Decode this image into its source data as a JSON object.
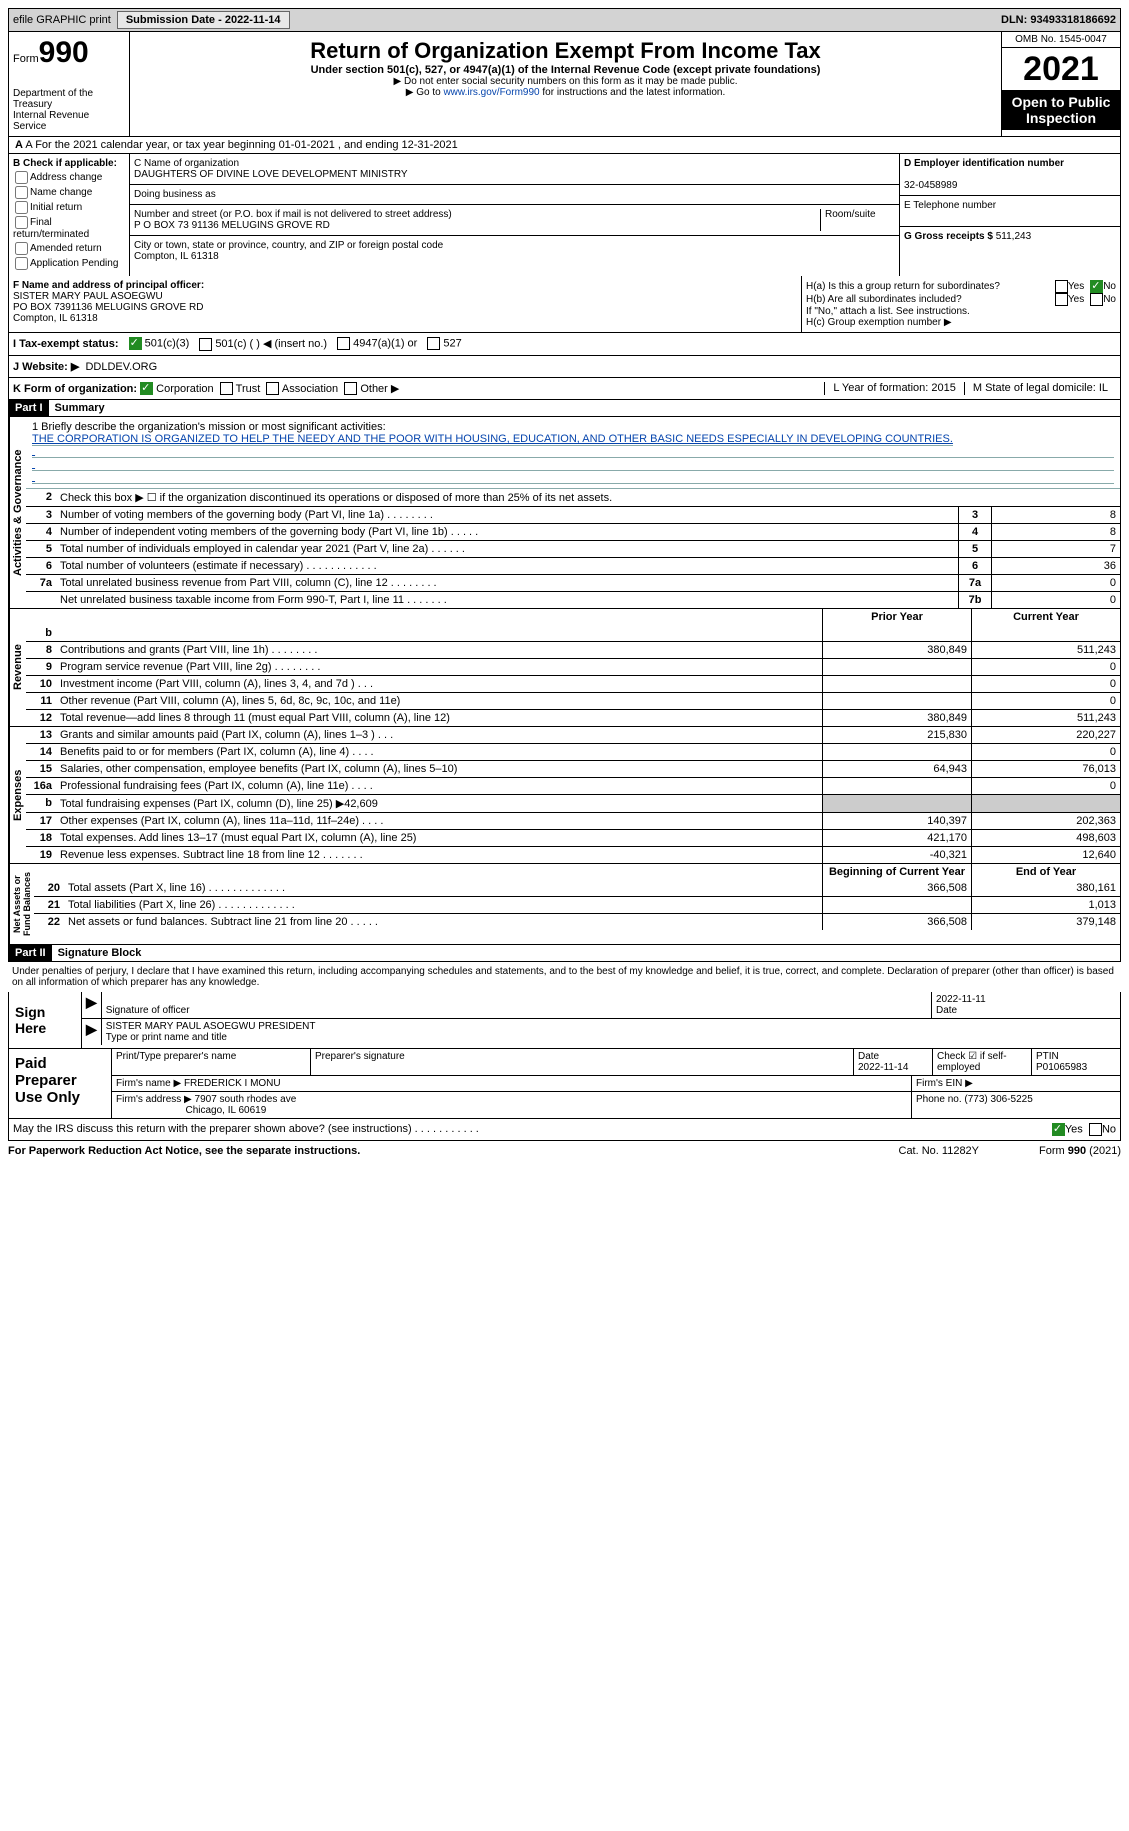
{
  "topbar": {
    "efile": "efile GRAPHIC print",
    "submission_label": "Submission Date - 2022-11-14",
    "dln": "DLN: 93493318186692"
  },
  "header": {
    "form_prefix": "Form",
    "form_num": "990",
    "dept": "Department of the Treasury\nInternal Revenue Service",
    "title": "Return of Organization Exempt From Income Tax",
    "subtitle": "Under section 501(c), 527, or 4947(a)(1) of the Internal Revenue Code (except private foundations)",
    "instr1": "▶ Do not enter social security numbers on this form as it may be made public.",
    "instr2_pre": "▶ Go to ",
    "instr2_link": "www.irs.gov/Form990",
    "instr2_post": " for instructions and the latest information.",
    "omb": "OMB No. 1545-0047",
    "year": "2021",
    "open": "Open to Public Inspection"
  },
  "rowA": {
    "text": "A For the 2021 calendar year, or tax year beginning 01-01-2021     , and ending 12-31-2021"
  },
  "colB": {
    "label": "B Check if applicable:",
    "items": [
      "Address change",
      "Name change",
      "Initial return",
      "Final return/terminated",
      "Amended return",
      "Application Pending"
    ]
  },
  "colC": {
    "name_label": "C Name of organization",
    "name": "DAUGHTERS OF DIVINE LOVE DEVELOPMENT MINISTRY",
    "dba_label": "Doing business as",
    "street_label": "Number and street (or P.O. box if mail is not delivered to street address)",
    "room_label": "Room/suite",
    "street": "P O BOX 73 91136 MELUGINS GROVE RD",
    "city_label": "City or town, state or province, country, and ZIP or foreign postal code",
    "city": "Compton, IL  61318"
  },
  "colD": {
    "label": "D Employer identification number",
    "value": "32-0458989"
  },
  "colE": {
    "label": "E Telephone number",
    "value": ""
  },
  "colG": {
    "label": "G Gross receipts $",
    "value": "511,243"
  },
  "colF": {
    "label": "F Name and address of principal officer:",
    "name": "SISTER MARY PAUL ASOEGWU",
    "addr1": "PO BOX 7391136 MELUGINS GROVE RD",
    "addr2": "Compton, IL  61318"
  },
  "colH": {
    "a_label": "H(a)  Is this a group return for subordinates?",
    "a_no": "No",
    "b_label": "H(b)  Are all subordinates included?",
    "b_note": "If \"No,\" attach a list. See instructions.",
    "c_label": "H(c)  Group exemption number ▶"
  },
  "status": {
    "label": "I   Tax-exempt status:",
    "opt1": "501(c)(3)",
    "opt2": "501(c) (  ) ◀ (insert no.)",
    "opt3": "4947(a)(1) or",
    "opt4": "527"
  },
  "website": {
    "label": "J   Website: ▶",
    "value": "DDLDEV.ORG"
  },
  "rowK": {
    "label": "K Form of organization:",
    "opts": [
      "Corporation",
      "Trust",
      "Association",
      "Other ▶"
    ],
    "l_label": "L Year of formation: 2015",
    "m_label": "M State of legal domicile: IL"
  },
  "part1": {
    "num": "Part I",
    "title": "Summary"
  },
  "mission": {
    "label": "1   Briefly describe the organization's mission or most significant activities:",
    "text": "THE CORPORATION IS ORGANIZED TO HELP THE NEEDY AND THE POOR WITH HOUSING, EDUCATION, AND OTHER BASIC NEEDS ESPECIALLY IN DEVELOPING COUNTRIES."
  },
  "govLines": [
    {
      "n": "2",
      "d": "Check this box ▶ ☐ if the organization discontinued its operations or disposed of more than 25% of its net assets."
    },
    {
      "n": "3",
      "d": "Number of voting members of the governing body (Part VI, line 1a)   .    .    .    .    .    .    .    .",
      "b": "3",
      "v": "8"
    },
    {
      "n": "4",
      "d": "Number of independent voting members of the governing body (Part VI, line 1b)    .    .    .    .    .",
      "b": "4",
      "v": "8"
    },
    {
      "n": "5",
      "d": "Total number of individuals employed in calendar year 2021 (Part V, line 2a)    .    .    .    .    .    .",
      "b": "5",
      "v": "7"
    },
    {
      "n": "6",
      "d": "Total number of volunteers (estimate if necessary)    .    .    .    .    .    .    .    .    .    .    .    .",
      "b": "6",
      "v": "36"
    },
    {
      "n": "7a",
      "d": "Total unrelated business revenue from Part VIII, column (C), line 12    .    .    .    .    .    .    .    .",
      "b": "7a",
      "v": "0"
    },
    {
      "n": "",
      "d": "Net unrelated business taxable income from Form 990-T, Part I, line 11    .    .    .    .    .    .    .",
      "b": "7b",
      "v": "0"
    }
  ],
  "colHeaders": {
    "prior": "Prior Year",
    "current": "Current Year"
  },
  "revLines": [
    {
      "n": "b",
      "d": "",
      "p": "",
      "c": ""
    },
    {
      "n": "8",
      "d": "Contributions and grants (Part VIII, line 1h)    .    .    .    .    .    .    .    .",
      "p": "380,849",
      "c": "511,243"
    },
    {
      "n": "9",
      "d": "Program service revenue (Part VIII, line 2g)    .    .    .    .    .    .    .    .",
      "p": "",
      "c": "0"
    },
    {
      "n": "10",
      "d": "Investment income (Part VIII, column (A), lines 3, 4, and 7d )    .    .    .",
      "p": "",
      "c": "0"
    },
    {
      "n": "11",
      "d": "Other revenue (Part VIII, column (A), lines 5, 6d, 8c, 9c, 10c, and 11e)",
      "p": "",
      "c": "0"
    },
    {
      "n": "12",
      "d": "Total revenue—add lines 8 through 11 (must equal Part VIII, column (A), line 12)",
      "p": "380,849",
      "c": "511,243"
    }
  ],
  "expLines": [
    {
      "n": "13",
      "d": "Grants and similar amounts paid (Part IX, column (A), lines 1–3 )    .    .    .",
      "p": "215,830",
      "c": "220,227"
    },
    {
      "n": "14",
      "d": "Benefits paid to or for members (Part IX, column (A), line 4)    .    .    .    .",
      "p": "",
      "c": "0"
    },
    {
      "n": "15",
      "d": "Salaries, other compensation, employee benefits (Part IX, column (A), lines 5–10)",
      "p": "64,943",
      "c": "76,013"
    },
    {
      "n": "16a",
      "d": "Professional fundraising fees (Part IX, column (A), line 11e)    .    .    .    .",
      "p": "",
      "c": "0"
    },
    {
      "n": "b",
      "d": "Total fundraising expenses (Part IX, column (D), line 25) ▶42,609",
      "p": "shaded",
      "c": "shaded"
    },
    {
      "n": "17",
      "d": "Other expenses (Part IX, column (A), lines 11a–11d, 11f–24e)    .    .    .    .",
      "p": "140,397",
      "c": "202,363"
    },
    {
      "n": "18",
      "d": "Total expenses. Add lines 13–17 (must equal Part IX, column (A), line 25)",
      "p": "421,170",
      "c": "498,603"
    },
    {
      "n": "19",
      "d": "Revenue less expenses. Subtract line 18 from line 12    .    .    .    .    .    .    .",
      "p": "-40,321",
      "c": "12,640"
    }
  ],
  "netHeaders": {
    "prior": "Beginning of Current Year",
    "current": "End of Year"
  },
  "netLines": [
    {
      "n": "20",
      "d": "Total assets (Part X, line 16)    .    .    .    .    .    .    .    .    .    .    .    .    .",
      "p": "366,508",
      "c": "380,161"
    },
    {
      "n": "21",
      "d": "Total liabilities (Part X, line 26)    .    .    .    .    .    .    .    .    .    .    .    .    .",
      "p": "",
      "c": "1,013"
    },
    {
      "n": "22",
      "d": "Net assets or fund balances. Subtract line 21 from line 20    .    .    .    .    .",
      "p": "366,508",
      "c": "379,148"
    }
  ],
  "part2": {
    "num": "Part II",
    "title": "Signature Block"
  },
  "sigDecl": "Under penalties of perjury, I declare that I have examined this return, including accompanying schedules and statements, and to the best of my knowledge and belief, it is true, correct, and complete. Declaration of preparer (other than officer) is based on all information of which preparer has any knowledge.",
  "sign": {
    "label": "Sign Here",
    "sig_officer": "Signature of officer",
    "date": "2022-11-11",
    "date_label": "Date",
    "typed": "SISTER MARY PAUL ASOEGWU  PRESIDENT",
    "typed_label": "Type or print name and title"
  },
  "paid": {
    "label": "Paid Preparer Use Only",
    "prep_name_label": "Print/Type preparer's name",
    "prep_sig_label": "Preparer's signature",
    "date_label": "Date",
    "date": "2022-11-14",
    "check_label": "Check ☑ if self-employed",
    "ptin_label": "PTIN",
    "ptin": "P01065983",
    "firm_name_label": "Firm's name    ▶",
    "firm_name": "FREDERICK I MONU",
    "firm_ein_label": "Firm's EIN ▶",
    "firm_addr_label": "Firm's address ▶",
    "firm_addr1": "7907 south rhodes ave",
    "firm_addr2": "Chicago, IL  60619",
    "phone_label": "Phone no.",
    "phone": "(773) 306-5225"
  },
  "discuss": {
    "label": "May the IRS discuss this return with the preparer shown above? (see instructions)    .    .    .    .    .    .    .    .    .    .    .",
    "yes": "Yes",
    "no": "No"
  },
  "footer": {
    "notice": "For Paperwork Reduction Act Notice, see the separate instructions.",
    "cat": "Cat. No. 11282Y",
    "form": "Form 990 (2021)"
  },
  "sideLabels": {
    "gov": "Activities & Governance",
    "rev": "Revenue",
    "exp": "Expenses",
    "net": "Net Assets or\nFund Balances"
  }
}
